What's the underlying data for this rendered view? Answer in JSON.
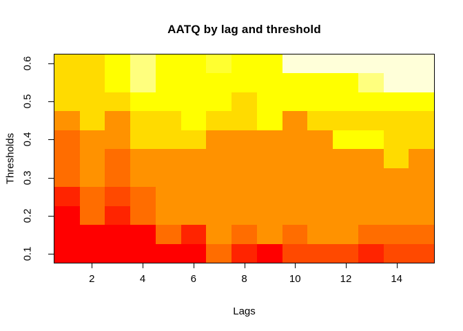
{
  "title": "AATQ by lag and threshold",
  "axes": {
    "x": {
      "label": "Lags",
      "ticks": [
        {
          "value": 2,
          "label": "2"
        },
        {
          "value": 4,
          "label": "4"
        },
        {
          "value": 6,
          "label": "6"
        },
        {
          "value": 8,
          "label": "8"
        },
        {
          "value": 10,
          "label": "10"
        },
        {
          "value": 12,
          "label": "12"
        },
        {
          "value": 14,
          "label": "14"
        }
      ]
    },
    "y": {
      "label": "Thresholds",
      "ticks": [
        {
          "value": 0.1,
          "label": "0.1"
        },
        {
          "value": 0.2,
          "label": "0.2"
        },
        {
          "value": 0.3,
          "label": "0.3"
        },
        {
          "value": 0.4,
          "label": "0.4"
        },
        {
          "value": 0.5,
          "label": "0.5"
        },
        {
          "value": 0.6,
          "label": "0.6"
        }
      ]
    }
  },
  "chart_data": {
    "type": "heatmap",
    "title": "AATQ by lag and threshold",
    "xlabel": "Lags",
    "ylabel": "Thresholds",
    "x_lags": [
      1,
      2,
      3,
      4,
      5,
      6,
      7,
      8,
      9,
      10,
      11,
      12,
      13,
      14,
      15
    ],
    "x_range": [
      0.5,
      15.5
    ],
    "y_thresholds_top_to_bottom": [
      0.6,
      0.55,
      0.5,
      0.45,
      0.4,
      0.35,
      0.3,
      0.25,
      0.2,
      0.15,
      0.1
    ],
    "y_tick_step_rows": 2,
    "grid_lines": "off",
    "legend": "none",
    "palette_name": "R heat.colors style (red → orange → yellow → cream)",
    "palette": {
      "red": "#FF0000",
      "scarlet": "#FF2400",
      "red_orange": "#FF4900",
      "dark_orange": "#FF6D00",
      "orange": "#FF9200",
      "gold": "#FFDB00",
      "yellow": "#FFFF00",
      "pale_yellow": "#FFFF30",
      "light_yellow": "#FFFF7E",
      "cream": "#FFFFD9"
    },
    "grid_colors_top_to_bottom": [
      [
        "#FFDB00",
        "#FFDB00",
        "#FFFF00",
        "#FFFF7E",
        "#FFFF00",
        "#FFFF00",
        "#FFFF30",
        "#FFFF00",
        "#FFFF00",
        "#FFFFD9",
        "#FFFFD9",
        "#FFFFD9",
        "#FFFFD9",
        "#FFFFD9",
        "#FFFFD9"
      ],
      [
        "#FFDB00",
        "#FFDB00",
        "#FFFF00",
        "#FFFF7E",
        "#FFFF00",
        "#FFFF00",
        "#FFFF00",
        "#FFFF00",
        "#FFFF00",
        "#FFFF00",
        "#FFFF00",
        "#FFFF00",
        "#FFFF7E",
        "#FFFFD9",
        "#FFFFD9"
      ],
      [
        "#FFDB00",
        "#FFDB00",
        "#FFDB00",
        "#FFFF00",
        "#FFFF00",
        "#FFFF00",
        "#FFFF00",
        "#FFDB00",
        "#FFFF00",
        "#FFFF00",
        "#FFFF00",
        "#FFFF00",
        "#FFFF00",
        "#FFFF00",
        "#FFFF00"
      ],
      [
        "#FF9200",
        "#FFDB00",
        "#FF9200",
        "#FFDB00",
        "#FFDB00",
        "#FFFF00",
        "#FFDB00",
        "#FFDB00",
        "#FFFF00",
        "#FF9200",
        "#FFDB00",
        "#FFDB00",
        "#FFDB00",
        "#FFDB00",
        "#FFDB00"
      ],
      [
        "#FF6D00",
        "#FF9200",
        "#FF9200",
        "#FFDB00",
        "#FFDB00",
        "#FFDB00",
        "#FF9200",
        "#FF9200",
        "#FF9200",
        "#FF9200",
        "#FF9200",
        "#FFFF00",
        "#FFFF00",
        "#FFDB00",
        "#FFDB00"
      ],
      [
        "#FF6D00",
        "#FF9200",
        "#FF6D00",
        "#FF9200",
        "#FF9200",
        "#FF9200",
        "#FF9200",
        "#FF9200",
        "#FF9200",
        "#FF9200",
        "#FF9200",
        "#FF9200",
        "#FF9200",
        "#FFDB00",
        "#FF9200"
      ],
      [
        "#FF6D00",
        "#FF9200",
        "#FF6D00",
        "#FF9200",
        "#FF9200",
        "#FF9200",
        "#FF9200",
        "#FF9200",
        "#FF9200",
        "#FF9200",
        "#FF9200",
        "#FF9200",
        "#FF9200",
        "#FF9200",
        "#FF9200"
      ],
      [
        "#FF2400",
        "#FF6D00",
        "#FF4900",
        "#FF6D00",
        "#FF9200",
        "#FF9200",
        "#FF9200",
        "#FF9200",
        "#FF9200",
        "#FF9200",
        "#FF9200",
        "#FF9200",
        "#FF9200",
        "#FF9200",
        "#FF9200"
      ],
      [
        "#FF0000",
        "#FF6D00",
        "#FF2400",
        "#FF6D00",
        "#FF9200",
        "#FF9200",
        "#FF9200",
        "#FF9200",
        "#FF9200",
        "#FF9200",
        "#FF9200",
        "#FF9200",
        "#FF9200",
        "#FF9200",
        "#FF9200"
      ],
      [
        "#FF0000",
        "#FF0000",
        "#FF0000",
        "#FF0000",
        "#FF6D00",
        "#FF2400",
        "#FF9200",
        "#FF6D00",
        "#FF9200",
        "#FF6D00",
        "#FF9200",
        "#FF9200",
        "#FF6D00",
        "#FF6D00",
        "#FF6D00"
      ],
      [
        "#FF0000",
        "#FF0000",
        "#FF0000",
        "#FF0000",
        "#FF0000",
        "#FF0000",
        "#FF6D00",
        "#FF2400",
        "#FF0000",
        "#FF4900",
        "#FF4900",
        "#FF4900",
        "#FF2400",
        "#FF4900",
        "#FF4900"
      ]
    ]
  },
  "frame": {
    "color": "#000000"
  }
}
